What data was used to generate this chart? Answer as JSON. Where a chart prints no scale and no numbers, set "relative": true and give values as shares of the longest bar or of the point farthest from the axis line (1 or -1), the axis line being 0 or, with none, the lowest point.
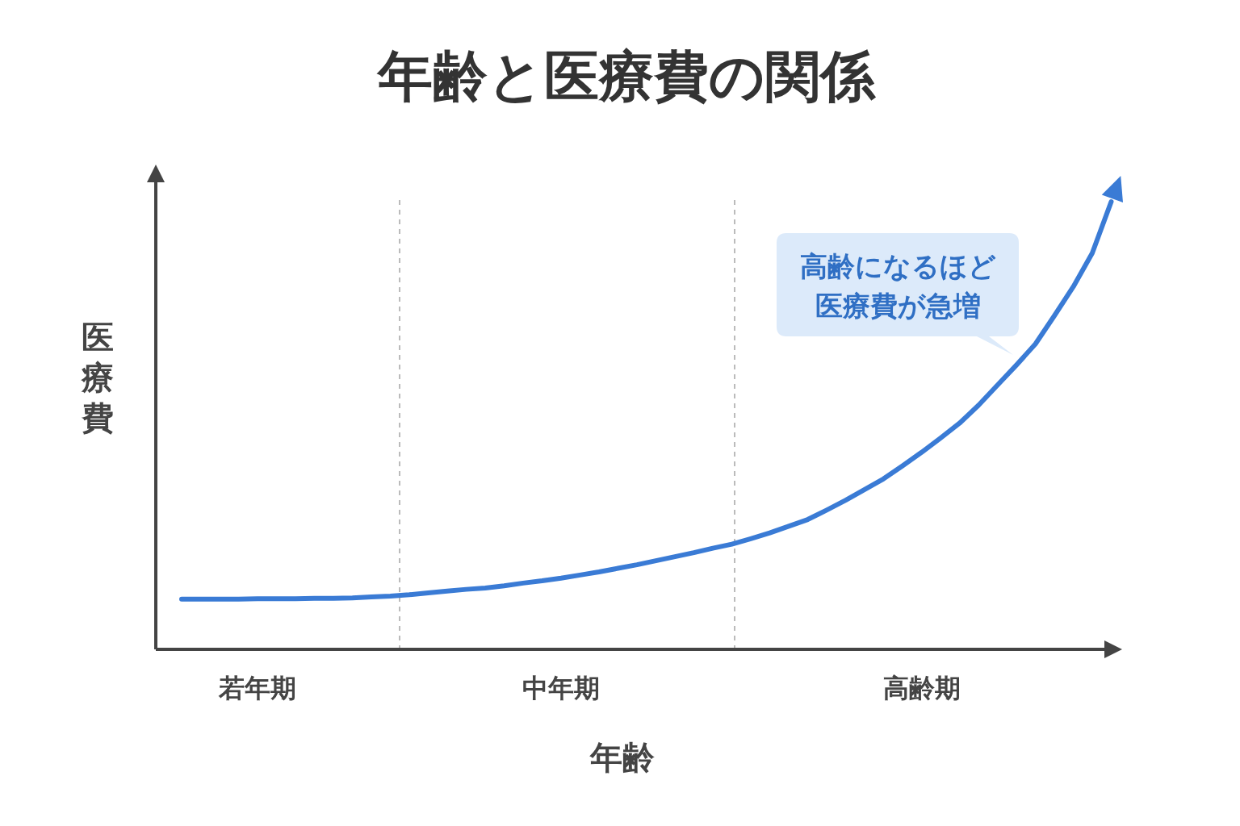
{
  "chart_data": {
    "type": "line",
    "title": "年齢と医療費の関係",
    "xlabel": "年齢",
    "ylabel": "医療費",
    "relative": true,
    "tick_labels": "x",
    "categories": [
      null,
      null,
      null,
      null,
      "若年期",
      null,
      null,
      null,
      null,
      null,
      null,
      null,
      null,
      null,
      null,
      null,
      null,
      null,
      null,
      null,
      "中年期",
      null,
      null,
      null,
      null,
      null,
      null,
      null,
      null,
      null,
      null,
      null,
      null,
      null,
      null,
      null,
      null,
      null,
      null,
      "高齢期",
      null,
      null,
      null,
      null,
      null,
      null,
      null,
      null,
      null,
      null
    ],
    "series": [
      {
        "color": "#3a7bd5",
        "values": [
          0.112,
          0.112,
          0.112,
          0.112,
          0.113,
          0.113,
          0.113,
          0.114,
          0.114,
          0.115,
          0.117,
          0.119,
          0.122,
          0.126,
          0.13,
          0.134,
          0.137,
          0.142,
          0.148,
          0.153,
          0.159,
          0.166,
          0.173,
          0.181,
          0.189,
          0.198,
          0.207,
          0.216,
          0.226,
          0.235,
          0.247,
          0.26,
          0.275,
          0.29,
          0.311,
          0.333,
          0.357,
          0.381,
          0.41,
          0.44,
          0.472,
          0.505,
          0.545,
          0.59,
          0.635,
          0.682,
          0.745,
          0.81,
          0.885,
          1.0
        ]
      }
    ],
    "annotations": [
      "高齢になるほど医療費が急増"
    ]
  }
}
